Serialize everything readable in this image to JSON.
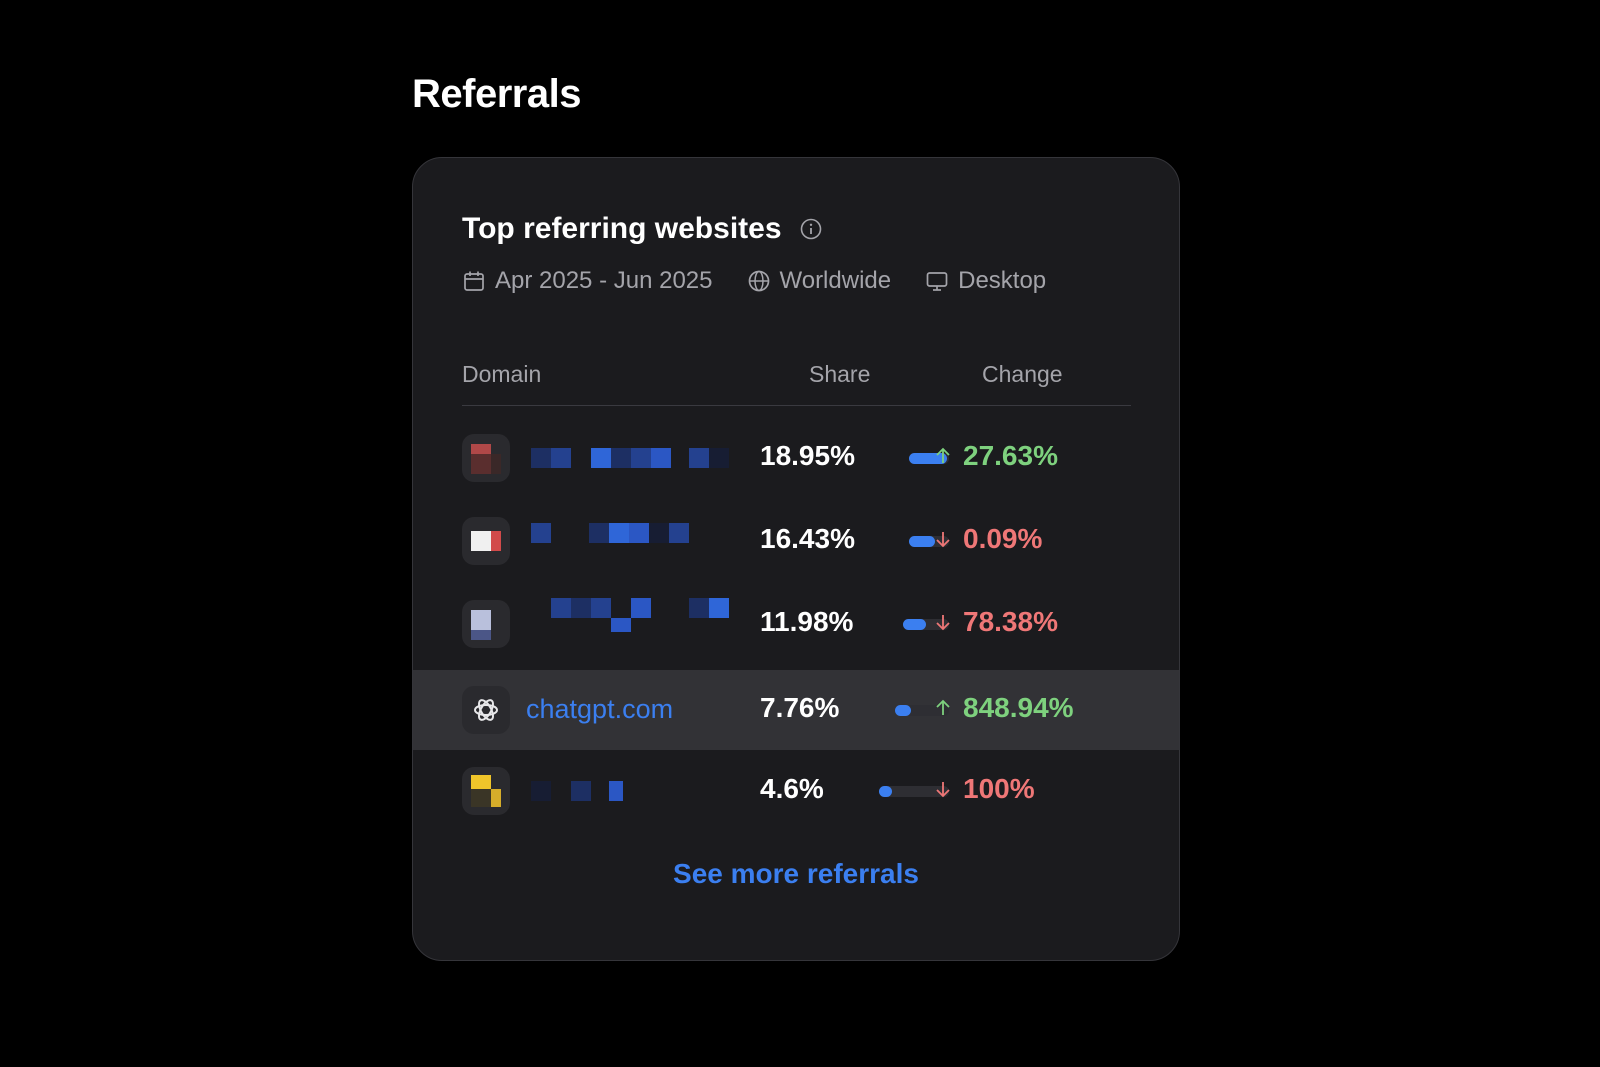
{
  "section_title": "Referrals",
  "card": {
    "title": "Top referring websites",
    "info_icon": "info-icon",
    "filters": {
      "date_range": "Apr 2025 - Jun 2025",
      "region": "Worldwide",
      "device": "Desktop"
    },
    "columns": {
      "domain": "Domain",
      "share": "Share",
      "change": "Change"
    },
    "rows": [
      {
        "domain": "",
        "redacted": true,
        "share": "18.95%",
        "share_fraction": 0.95,
        "change": "27.63%",
        "direction": "up"
      },
      {
        "domain": "",
        "redacted": true,
        "share": "16.43%",
        "share_fraction": 0.65,
        "change": "0.09%",
        "direction": "down"
      },
      {
        "domain": "",
        "redacted": true,
        "share": "11.98%",
        "share_fraction": 0.5,
        "change": "78.38%",
        "direction": "down"
      },
      {
        "domain": "chatgpt.com",
        "redacted": false,
        "share": "7.76%",
        "share_fraction": 0.3,
        "change": "848.94%",
        "direction": "up",
        "highlighted": true
      },
      {
        "domain": "",
        "redacted": true,
        "share": "4.6%",
        "share_fraction": 0.18,
        "change": "100%",
        "direction": "down"
      }
    ],
    "see_more": "See more referrals"
  },
  "colors": {
    "accent": "#3b7ff0",
    "up": "#7ed17e",
    "down": "#ef7777",
    "card_bg": "#1b1b1e"
  }
}
